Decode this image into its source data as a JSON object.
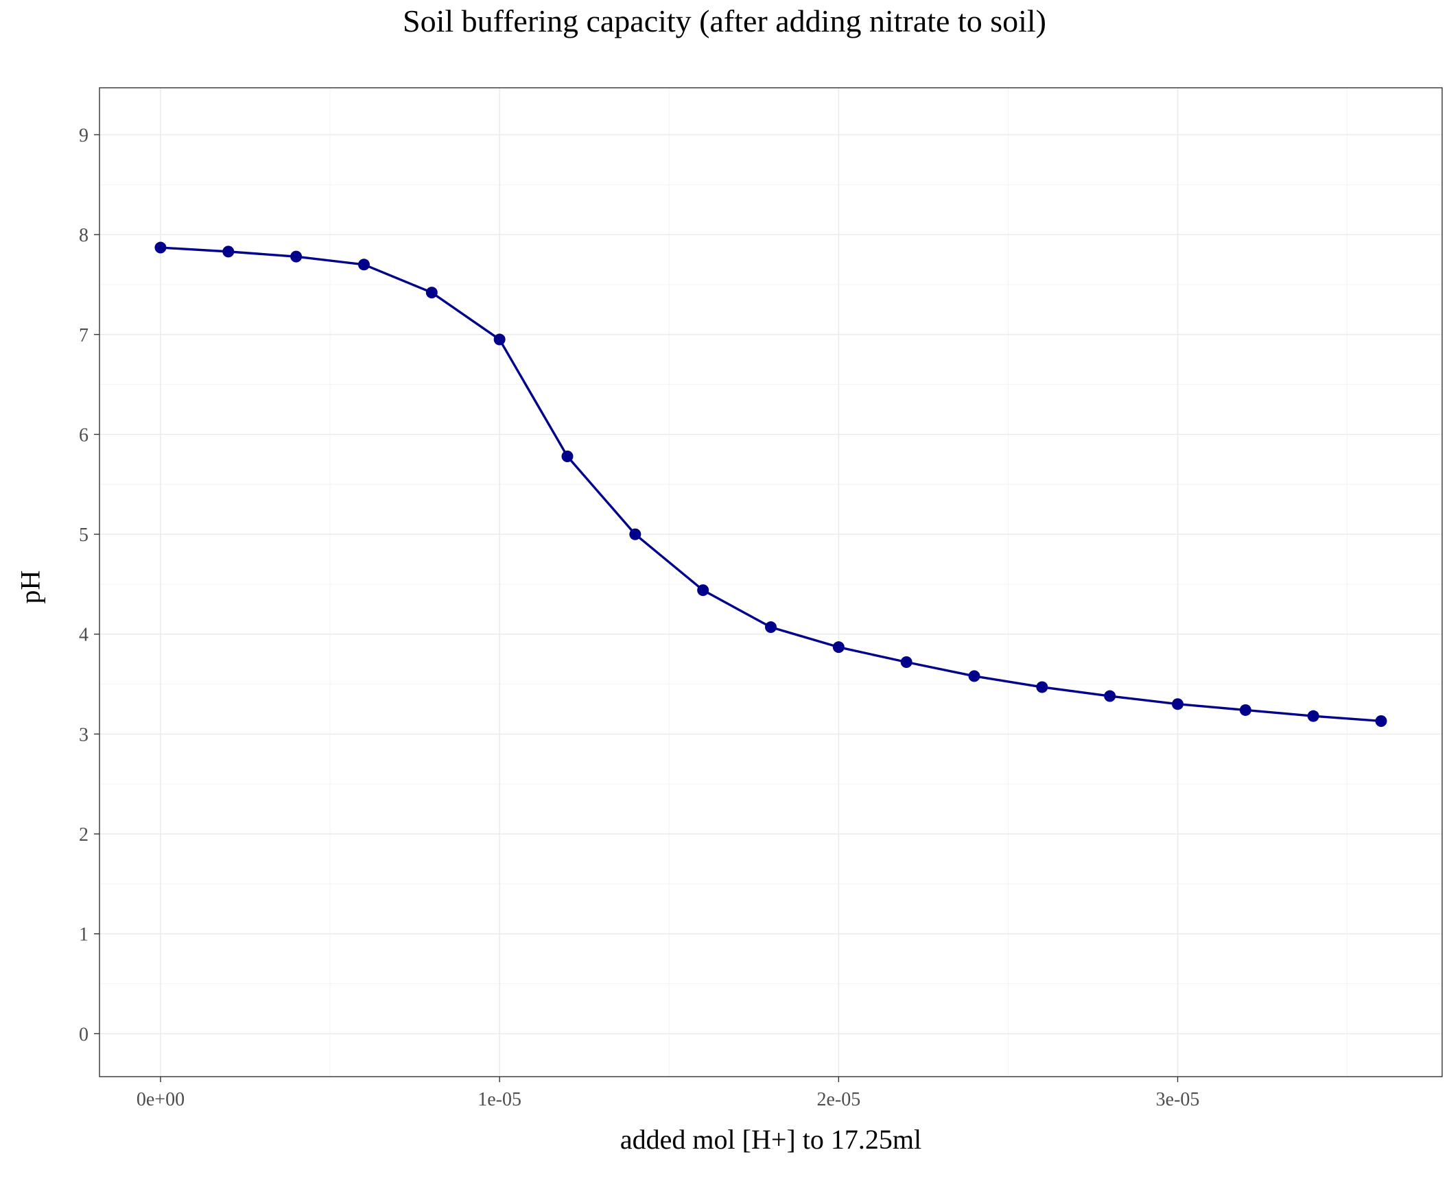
{
  "chart_data": {
    "type": "line",
    "title": "Soil buffering capacity (after adding nitrate to soil)",
    "xlabel": "added mol [H+] to 17.25ml",
    "ylabel": "pH",
    "x_ticks": [
      {
        "value": 0,
        "label": "0e+00"
      },
      {
        "value": 1e-05,
        "label": "1e-05"
      },
      {
        "value": 2e-05,
        "label": "2e-05"
      },
      {
        "value": 3e-05,
        "label": "3e-05"
      }
    ],
    "y_ticks": [
      0,
      1,
      2,
      3,
      4,
      5,
      6,
      7,
      8,
      9
    ],
    "xlim": [
      -1.8e-06,
      3.78e-05
    ],
    "ylim": [
      -0.43,
      9.47
    ],
    "grid": true,
    "line_color": "#00008B",
    "series": [
      {
        "x": [
          0,
          2e-06,
          4e-06,
          6e-06,
          8e-06,
          1e-05,
          1.2e-05,
          1.4e-05,
          1.6e-05,
          1.8e-05,
          2e-05,
          2.2e-05,
          2.4e-05,
          2.6e-05,
          2.8e-05,
          3e-05,
          3.2e-05,
          3.4e-05,
          3.6e-05
        ],
        "y": [
          7.87,
          7.83,
          7.78,
          7.7,
          7.42,
          6.95,
          5.78,
          5.0,
          4.44,
          4.07,
          3.87,
          3.72,
          3.58,
          3.47,
          3.38,
          3.3,
          3.24,
          3.18,
          3.13
        ]
      }
    ]
  }
}
